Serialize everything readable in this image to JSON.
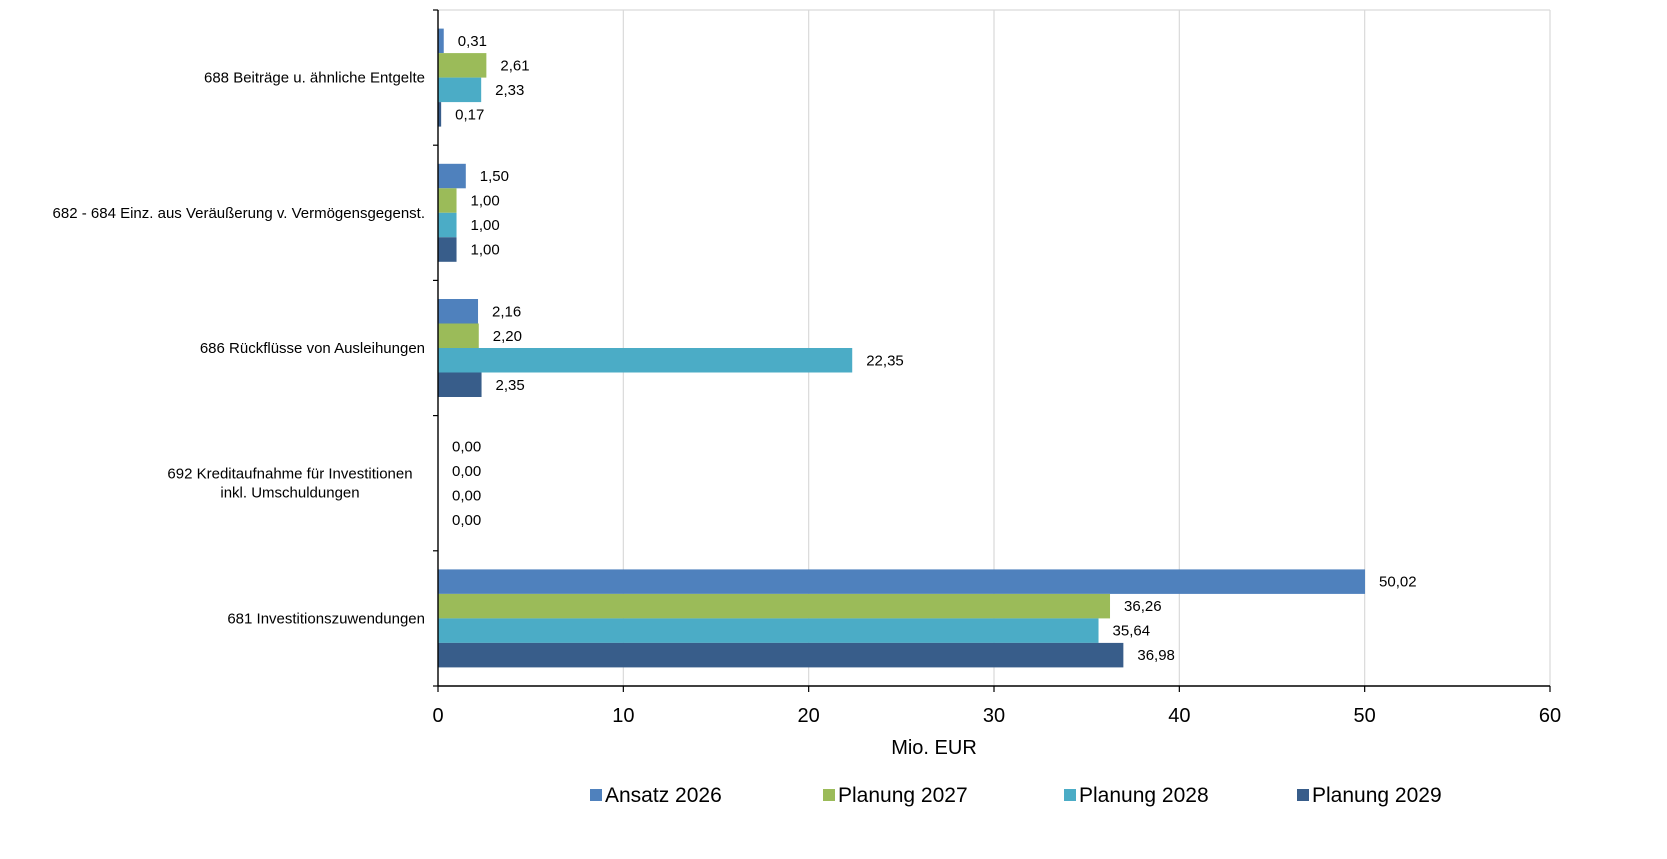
{
  "chart_data": {
    "type": "bar",
    "orientation": "horizontal",
    "title": "",
    "xlabel": "Mio. EUR",
    "ylabel": "",
    "xlim": [
      0,
      60
    ],
    "x_ticks": [
      0,
      10,
      20,
      30,
      40,
      50,
      60
    ],
    "grid": "vertical",
    "legend_position": "bottom",
    "categories": [
      {
        "label": "688 Beiträge u. ähnliche Entgelte",
        "lines": [
          "688 Beiträge u. ähnliche Entgelte"
        ]
      },
      {
        "label": "682 - 684 Einz. aus Veräußerung v. Vermögensgegenst.",
        "lines": [
          "682 - 684 Einz. aus Veräußerung v. Vermögensgegenst."
        ]
      },
      {
        "label": "686 Rückflüsse von Ausleihungen",
        "lines": [
          "686 Rückflüsse von Ausleihungen"
        ]
      },
      {
        "label": "692 Kreditaufnahme für Investitionen inkl. Umschuldungen",
        "lines": [
          "692 Kreditaufnahme für Investitionen",
          "inkl. Umschuldungen"
        ]
      },
      {
        "label": "681 Investitionszuwendungen",
        "lines": [
          "681 Investitionszuwendungen"
        ]
      }
    ],
    "series": [
      {
        "name": "Ansatz 2026",
        "color": "#4f81bd",
        "values": [
          0.31,
          1.5,
          2.16,
          0.0,
          50.02
        ],
        "labels": [
          "0,31",
          "1,50",
          "2,16",
          "0,00",
          "50,02"
        ]
      },
      {
        "name": "Planung 2027",
        "color": "#9bbb59",
        "values": [
          2.61,
          1.0,
          2.2,
          0.0,
          36.26
        ],
        "labels": [
          "2,61",
          "1,00",
          "2,20",
          "0,00",
          "36,26"
        ]
      },
      {
        "name": "Planung 2028",
        "color": "#4bacc6",
        "values": [
          2.33,
          1.0,
          22.35,
          0.0,
          35.64
        ],
        "labels": [
          "2,33",
          "1,00",
          "22,35",
          "0,00",
          "35,64"
        ]
      },
      {
        "name": "Planung 2029",
        "color": "#385d8a",
        "values": [
          0.17,
          1.0,
          2.35,
          0.0,
          36.98
        ],
        "labels": [
          "0,17",
          "1,00",
          "2,35",
          "0,00",
          "36,98"
        ]
      }
    ]
  }
}
